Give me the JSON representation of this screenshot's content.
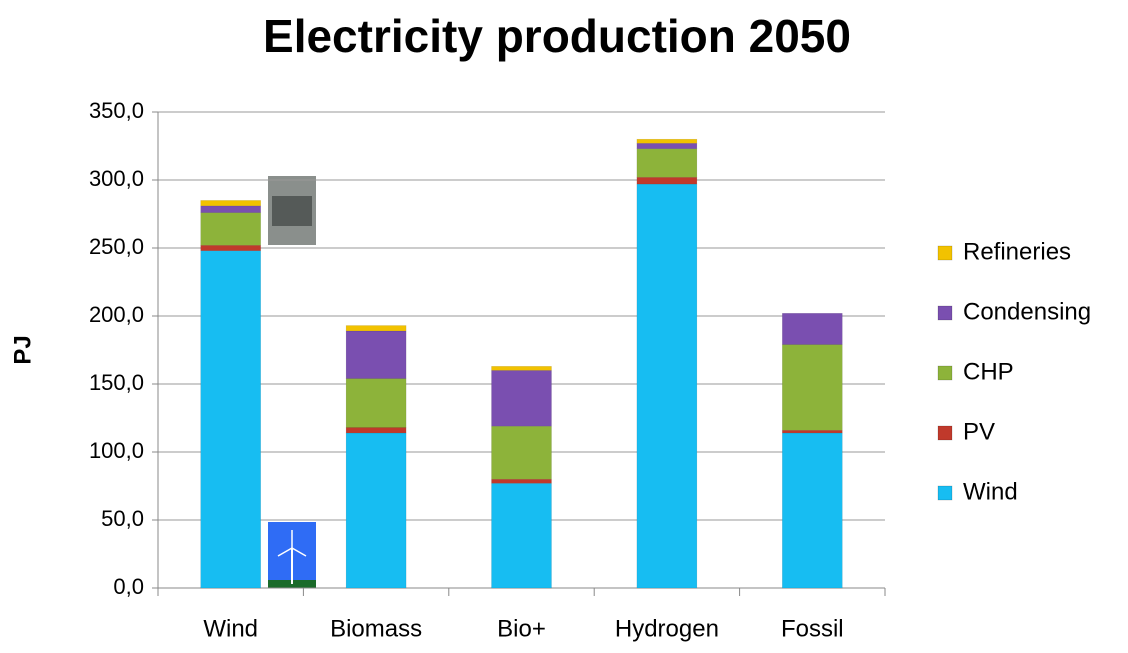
{
  "chart_data": {
    "type": "stacked_bar",
    "title": "Electricity production 2050",
    "y_label": "PJ",
    "categories": [
      "Wind",
      "Biomass",
      "Bio+",
      "Hydrogen",
      "Fossil"
    ],
    "series": [
      {
        "name": "Wind",
        "color": "#17bdf2",
        "values": [
          248,
          114,
          77,
          297,
          114
        ]
      },
      {
        "name": "PV",
        "color": "#c0392b",
        "values": [
          4,
          4,
          3,
          5,
          2
        ]
      },
      {
        "name": "CHP",
        "color": "#8db33a",
        "values": [
          24,
          36,
          39,
          21,
          63
        ]
      },
      {
        "name": "Condensing",
        "color": "#7a4fb0",
        "values": [
          5,
          35,
          41,
          4,
          23
        ]
      },
      {
        "name": "Refineries",
        "color": "#f2c200",
        "values": [
          4,
          4,
          3,
          3,
          0
        ]
      }
    ],
    "ylim": [
      0,
      350
    ],
    "yticks": [
      {
        "value": 0,
        "label": "0,0"
      },
      {
        "value": 50,
        "label": "50,0"
      },
      {
        "value": 100,
        "label": "100,0"
      },
      {
        "value": 150,
        "label": "150,0"
      },
      {
        "value": 200,
        "label": "200,0"
      },
      {
        "value": 250,
        "label": "250,0"
      },
      {
        "value": 300,
        "label": "300,0"
      },
      {
        "value": 350,
        "label": "350,0"
      }
    ],
    "grid": true,
    "legend": "right"
  }
}
